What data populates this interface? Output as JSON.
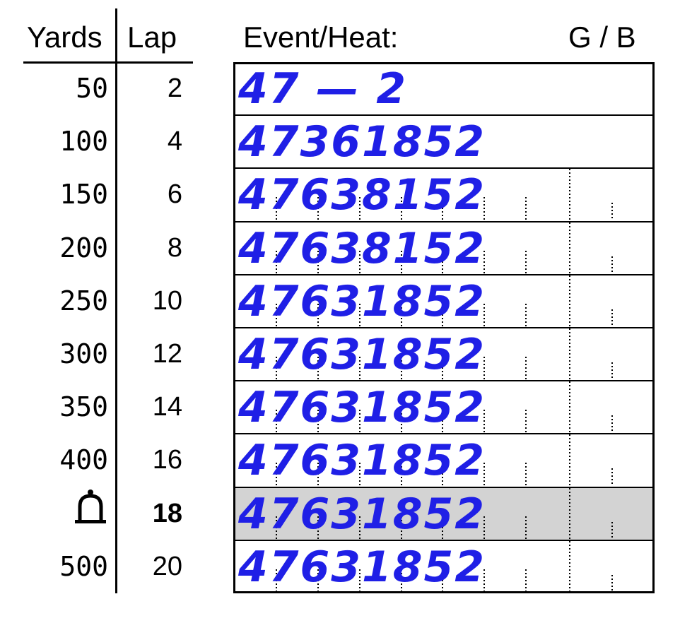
{
  "header": {
    "yards_label": "Yards",
    "lap_label": "Lap",
    "event_label": "Event/Heat:",
    "gender_label": "G / B"
  },
  "rows": [
    {
      "yards": "50",
      "lap": "2",
      "entry": "47 — 2",
      "highlight": false,
      "bell": false,
      "bold": false
    },
    {
      "yards": "100",
      "lap": "4",
      "entry": "47361852",
      "highlight": false,
      "bell": false,
      "bold": false
    },
    {
      "yards": "150",
      "lap": "6",
      "entry": "47638152",
      "highlight": false,
      "bell": false,
      "bold": false
    },
    {
      "yards": "200",
      "lap": "8",
      "entry": "47638152",
      "highlight": false,
      "bell": false,
      "bold": false
    },
    {
      "yards": "250",
      "lap": "10",
      "entry": "47631852",
      "highlight": false,
      "bell": false,
      "bold": false
    },
    {
      "yards": "300",
      "lap": "12",
      "entry": "47631852",
      "highlight": false,
      "bell": false,
      "bold": false
    },
    {
      "yards": "350",
      "lap": "14",
      "entry": "47631852",
      "highlight": false,
      "bell": false,
      "bold": false
    },
    {
      "yards": "400",
      "lap": "16",
      "entry": "47631852",
      "highlight": false,
      "bell": false,
      "bold": false
    },
    {
      "yards": "",
      "lap": "18",
      "entry": "47631852",
      "highlight": true,
      "bell": true,
      "bold": true
    },
    {
      "yards": "500",
      "lap": "20",
      "entry": "47631852",
      "highlight": false,
      "bell": false,
      "bold": false
    }
  ],
  "colors": {
    "ink": "#1f1fe6",
    "highlight": "#d3d3d3"
  },
  "icons": {
    "bell": "bell-icon"
  }
}
